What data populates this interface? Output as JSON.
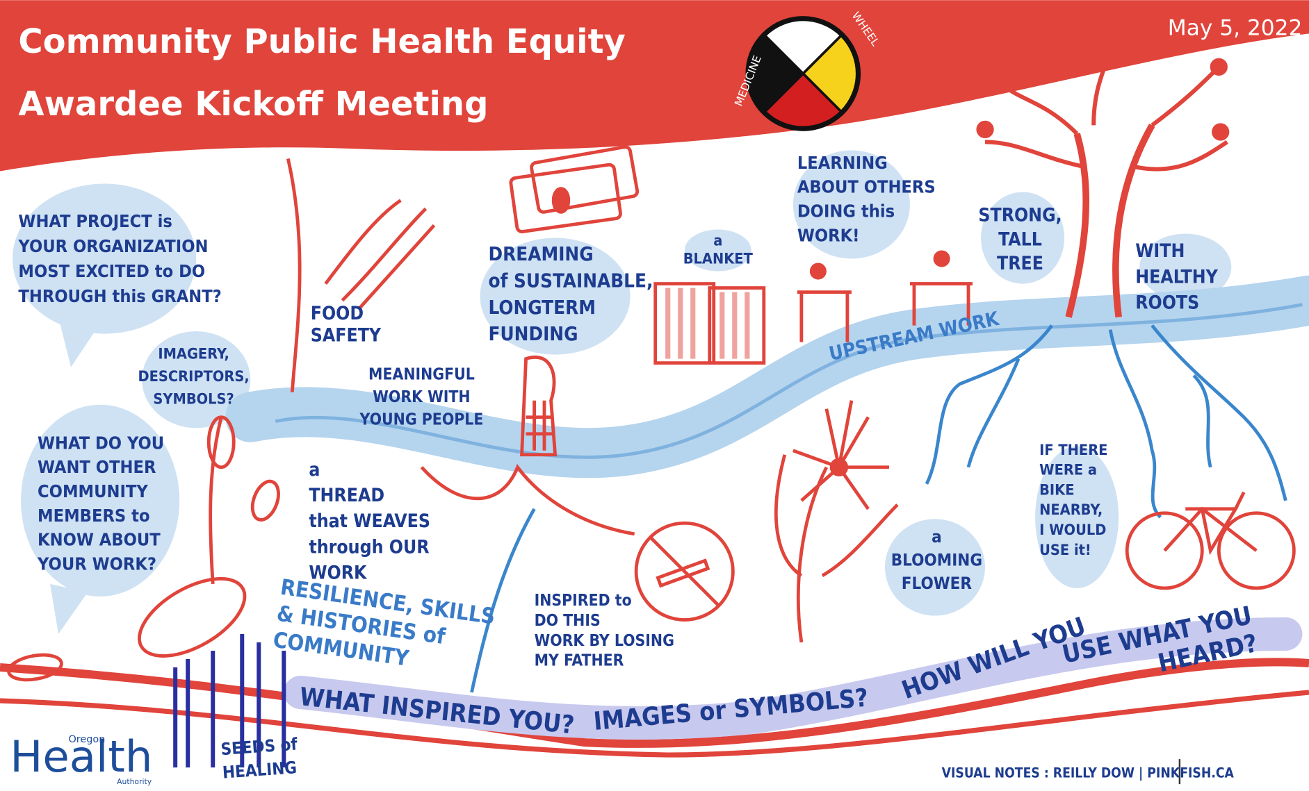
{
  "header": {
    "title": [
      "Community Public Health Equity",
      "Awardee Kickoff Meeting"
    ],
    "date": "May 5, 2022"
  },
  "wheel": {
    "left": "MEDICINE",
    "right": "WHEEL"
  },
  "notes": [
    {
      "lines": [
        "WHAT PROJECT is",
        "YOUR ORGANIZATION",
        "MOST EXCITED to DO",
        "THROUGH this GRANT?"
      ]
    },
    {
      "lines": [
        "IMAGERY,",
        "DESCRIPTORS,",
        "SYMBOLS?"
      ]
    },
    {
      "lines": [
        "WHAT DO YOU",
        "WANT OTHER",
        "COMMUNITY",
        "MEMBERS to",
        "KNOW ABOUT",
        "YOUR WORK?"
      ]
    },
    {
      "lines": [
        "FOOD",
        "SAFETY"
      ]
    },
    {
      "lines": [
        "DREAMING",
        "of SUSTAINABLE,",
        "LONGTERM",
        "FUNDING"
      ]
    },
    {
      "lines": [
        "a",
        "BLANKET"
      ]
    },
    {
      "lines": [
        "LEARNING",
        "ABOUT OTHERS",
        "DOING this",
        "WORK!"
      ]
    },
    {
      "lines": [
        "STRONG,",
        "TALL",
        "TREE"
      ]
    },
    {
      "lines": [
        "WITH",
        "HEALTHY",
        "ROOTS"
      ]
    },
    {
      "lines": [
        "UPSTREAM WORK"
      ]
    },
    {
      "lines": [
        "MEANINGFUL",
        "WORK WITH",
        "YOUNG PEOPLE"
      ]
    },
    {
      "lines": [
        "a",
        "THREAD",
        "that WEAVES",
        "through OUR",
        "WORK"
      ]
    },
    {
      "lines": [
        "RESILIENCE, SKILLS",
        "& HISTORIES of",
        "COMMUNITY"
      ]
    },
    {
      "lines": [
        "INSPIRED to",
        "DO THIS",
        "WORK BY LOSING",
        "MY FATHER"
      ]
    },
    {
      "lines": [
        "a",
        "BLOOMING",
        "FLOWER"
      ]
    },
    {
      "lines": [
        "IF THERE",
        "WERE a",
        "BIKE",
        "NEARBY,",
        "I WOULD",
        "USE it!"
      ]
    },
    {
      "lines": [
        "WHAT INSPIRED YOU?"
      ]
    },
    {
      "lines": [
        "IMAGES or SYMBOLS?"
      ]
    },
    {
      "lines": [
        "HOW WILL YOU"
      ]
    },
    {
      "lines": [
        "USE WHAT YOU",
        "HEARD?"
      ]
    },
    {
      "lines": [
        "SEEDS of",
        "HEALING"
      ]
    }
  ],
  "logo": {
    "top": "Oregon",
    "main": "Health",
    "bottom": "Authority"
  },
  "credit": "VISUAL NOTES : REILLY DOW | PINKFISH.CA"
}
